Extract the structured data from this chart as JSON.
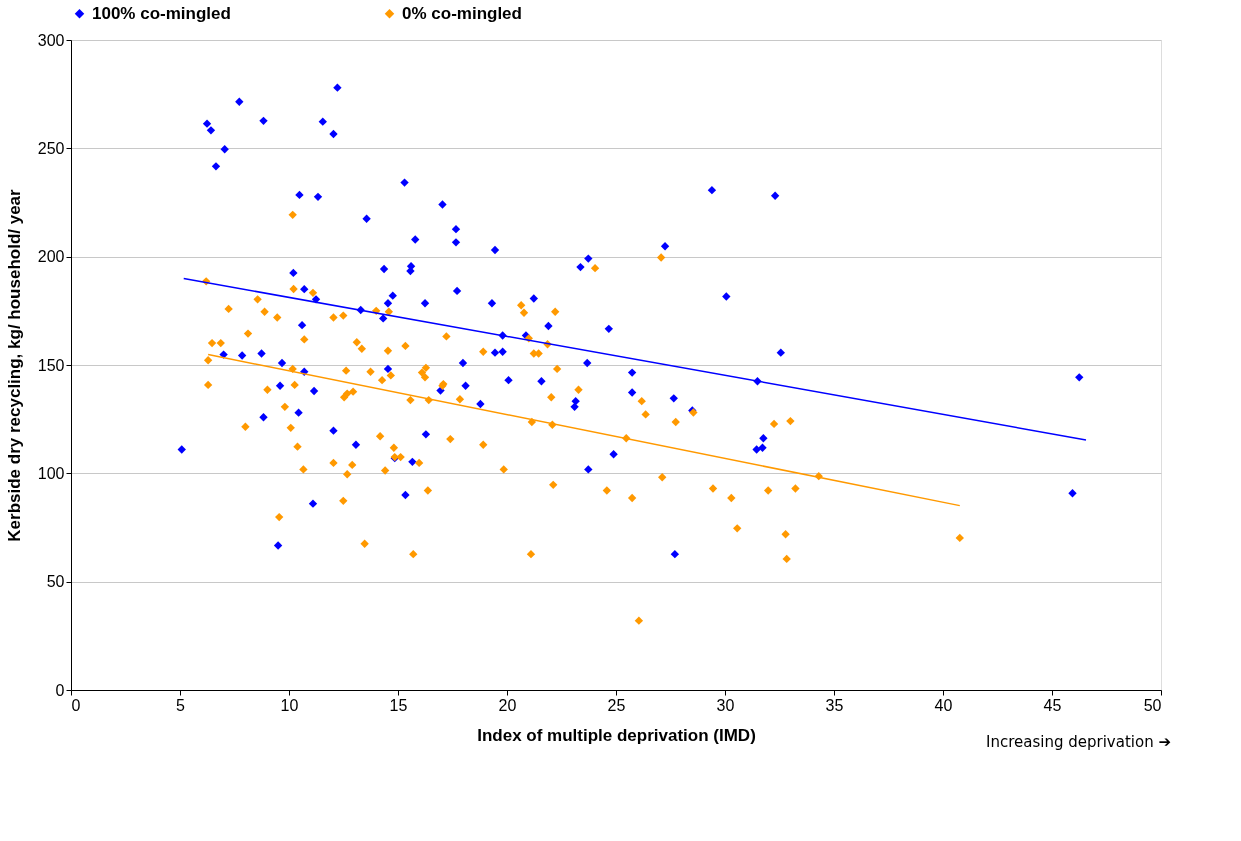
{
  "chart_data": {
    "type": "scatter",
    "xlabel": "Index of multiple deprivation (IMD)",
    "ylabel": "Kerbside dry recycling, kg/ household/ year",
    "annotations": [
      "Increasing deprivation ➔"
    ],
    "xlim": [
      0,
      50
    ],
    "xticks": [
      0,
      5,
      10,
      15,
      20,
      25,
      30,
      35,
      40,
      45,
      50
    ],
    "ylim": [
      0,
      300
    ],
    "yticks": [
      0,
      50,
      100,
      150,
      200,
      250,
      300
    ],
    "grid": "y",
    "legend": "top",
    "marker": "diamond",
    "series": [
      {
        "name": "100% co-mingled",
        "color": "#0000ff",
        "x": [
          5.08,
          6.24,
          6.42,
          6.65,
          7.05,
          7.72,
          7.85,
          7.0,
          8.83,
          8.74,
          8.83,
          9.68,
          9.59,
          9.5,
          10.48,
          10.2,
          10.7,
          10.6,
          10.7,
          10.44,
          11.1,
          11.15,
          11.24,
          11.33,
          11.55,
          12.22,
          12.04,
          12.04,
          13.07,
          13.29,
          13.56,
          14.32,
          14.36,
          14.54,
          14.76,
          14.54,
          14.85,
          15.3,
          15.34,
          15.57,
          15.6,
          15.66,
          15.79,
          16.24,
          16.28,
          17.04,
          16.95,
          17.66,
          17.66,
          17.71,
          17.98,
          18.1,
          18.78,
          19.31,
          19.45,
          19.45,
          19.8,
          19.8,
          20.07,
          20.87,
          21.23,
          21.58,
          21.9,
          23.1,
          23.15,
          23.37,
          23.73,
          23.68,
          23.73,
          24.67,
          24.89,
          25.74,
          25.74,
          27.25,
          27.65,
          27.7,
          28.5,
          29.4,
          30.06,
          31.49,
          31.45,
          31.72,
          31.76,
          32.3,
          32.56,
          46.25,
          45.94
        ],
        "values": [
          111,
          261.4,
          258.3,
          241.7,
          249.6,
          271.5,
          154.4,
          154.8,
          262.7,
          155.3,
          125.9,
          150.9,
          140.4,
          66.7,
          228.5,
          192.5,
          185,
          168.4,
          146.9,
          128,
          86,
          138,
          180.3,
          227.6,
          262.3,
          278,
          256.6,
          119.7,
          113.2,
          175.4,
          217.5,
          171.5,
          194.3,
          178.5,
          182,
          148.2,
          107,
          234.2,
          90,
          193.4,
          195.6,
          105.3,
          207.9,
          178.5,
          118,
          224.1,
          138.2,
          212.7,
          206.6,
          184.2,
          150.9,
          140.4,
          132,
          178.5,
          203.1,
          155.7,
          163.6,
          156.1,
          143,
          163.6,
          180.7,
          142.5,
          168,
          130.7,
          133.3,
          195.2,
          199.1,
          150.9,
          101.8,
          166.7,
          108.8,
          146.5,
          137.3,
          204.8,
          134.6,
          62.7,
          129,
          230.7,
          181.6,
          142.5,
          111,
          111.8,
          116.2,
          228.1,
          155.7,
          144.3,
          90.8
        ]
      },
      {
        "name": "0% co-mingled",
        "color": "#ff9900",
        "x": [
          6.2,
          6.29,
          6.29,
          6.47,
          6.87,
          7.23,
          8.0,
          8.12,
          8.56,
          8.88,
          9.01,
          9.46,
          9.55,
          9.81,
          10.17,
          10.21,
          10.17,
          10.26,
          10.08,
          10.39,
          10.66,
          10.7,
          11.1,
          12.04,
          12.04,
          12.49,
          12.49,
          12.62,
          12.53,
          12.67,
          12.67,
          12.94,
          12.9,
          13.11,
          13.34,
          13.47,
          13.74,
          14.0,
          14.18,
          14.27,
          14.41,
          14.54,
          14.58,
          14.67,
          14.81,
          14.85,
          15.12,
          15.34,
          15.57,
          15.7,
          15.97,
          16.1,
          16.24,
          16.28,
          16.41,
          16.37,
          17.04,
          17.08,
          17.22,
          17.4,
          17.84,
          18.91,
          18.91,
          19.85,
          20.65,
          20.78,
          21.0,
          21.14,
          21.1,
          21.23,
          21.45,
          21.86,
          22.03,
          22.08,
          22.12,
          22.21,
          22.3,
          23.28,
          24.04,
          24.58,
          25.47,
          25.74,
          26.05,
          26.18,
          26.36,
          27.07,
          27.12,
          27.74,
          28.55,
          29.45,
          30.29,
          30.56,
          31.98,
          32.25,
          32.78,
          32.83,
          33.0,
          33.23,
          34.3,
          40.77
        ],
        "values": [
          188.6,
          152.2,
          140.8,
          160.1,
          160.1,
          175.9,
          121.5,
          164.5,
          180.3,
          174.6,
          138.6,
          171.9,
          79.8,
          130.7,
          219.3,
          185.1,
          148.2,
          140.8,
          121,
          112.3,
          101.8,
          161.8,
          183.3,
          171.9,
          104.8,
          172.8,
          87.3,
          147.4,
          135.1,
          136.8,
          99.6,
          137.7,
          103.9,
          160.5,
          157.5,
          67.5,
          146.9,
          175,
          117.1,
          143,
          101.3,
          156.6,
          174.6,
          145.2,
          111.8,
          107.5,
          107.5,
          158.8,
          133.8,
          62.7,
          104.8,
          146.5,
          144.3,
          148.7,
          133.8,
          92.1,
          140.4,
          141.2,
          163.2,
          115.8,
          134.2,
          156.1,
          113.2,
          101.8,
          177.6,
          174.1,
          162.3,
          123.7,
          62.7,
          155.3,
          155.3,
          159.6,
          135.1,
          122.4,
          94.7,
          174.6,
          148.2,
          138.6,
          194.7,
          92.1,
          116.2,
          88.6,
          32,
          133.3,
          127.2,
          199.6,
          98.2,
          123.7,
          128.1,
          93,
          88.6,
          74.6,
          92.1,
          122.8,
          71.9,
          60.5,
          124.1,
          93,
          98.7,
          70.2
        ]
      },
      {
        "type": "line",
        "marker": "none",
        "color": "#0000ff",
        "x": [
          5.17,
          46.56
        ],
        "values": [
          189.9,
          115.4
        ]
      },
      {
        "type": "line",
        "marker": "none",
        "color": "#ff9900",
        "x": [
          6.29,
          40.77
        ],
        "values": [
          154.8,
          85.1
        ]
      }
    ]
  }
}
